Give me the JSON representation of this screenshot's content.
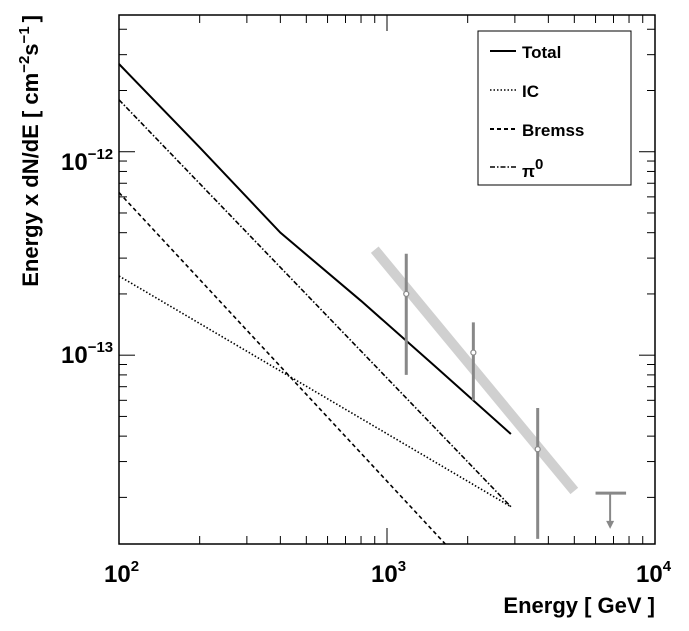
{
  "chart_data": {
    "type": "line",
    "xlabel": "Energy [ GeV ]",
    "ylabel_parts": {
      "main": "Energy x dN/dE  [ cm",
      "exp1": "−2",
      "mid": "s",
      "exp2": "−1",
      "end": "]"
    },
    "x_scale": "log",
    "y_scale": "log",
    "xlim": [
      100,
      10000
    ],
    "ylim": [
      1.18e-14,
      4.7e-12
    ],
    "x_ticks": [
      {
        "value": 100,
        "base": "10",
        "exp": "2"
      },
      {
        "value": 1000,
        "base": "10",
        "exp": "3"
      },
      {
        "value": 10000,
        "base": "10",
        "exp": "4"
      }
    ],
    "y_ticks": [
      {
        "value": 1e-12,
        "base": "10",
        "exp": "−12"
      },
      {
        "value": 1e-13,
        "base": "10",
        "exp": "−13"
      }
    ],
    "legend": {
      "position": "top-right",
      "entries": [
        {
          "label": "Total",
          "style": "solid"
        },
        {
          "label": "IC",
          "style": "dotted"
        },
        {
          "label": "Bremss",
          "style": "dashed"
        },
        {
          "label": "π",
          "sup": "0",
          "style": "dashdot"
        }
      ]
    },
    "series": [
      {
        "name": "Total",
        "style": "solid",
        "color": "#000000",
        "x": [
          100,
          200,
          400,
          800,
          1500,
          2900
        ],
        "y": [
          2.7e-12,
          1.05e-12,
          4e-13,
          1.85e-13,
          8.9e-14,
          4.1e-14
        ]
      },
      {
        "name": "IC",
        "style": "dotted",
        "color": "#000000",
        "x": [
          100,
          2900
        ],
        "y": [
          2.45e-13,
          1.8e-14
        ]
      },
      {
        "name": "Bremss",
        "style": "dashed",
        "color": "#000000",
        "x": [
          100,
          1650
        ],
        "y": [
          6.3e-13,
          1.18e-14
        ]
      },
      {
        "name": "π0",
        "style": "dashdot",
        "color": "#000000",
        "x": [
          100,
          2900
        ],
        "y": [
          1.8e-12,
          1.8e-14
        ]
      }
    ],
    "fit_band": {
      "color": "#d0d0d0",
      "x": [
        900,
        5000
      ],
      "y": [
        3.3e-13,
        2.15e-14
      ]
    },
    "data_points": [
      {
        "x": 1180,
        "y": 2e-13,
        "y_low": 8e-14,
        "y_high": 3.15e-13
      },
      {
        "x": 2100,
        "y": 1.03e-13,
        "y_low": 6e-14,
        "y_high": 1.45e-13
      },
      {
        "x": 3650,
        "y": 3.45e-14,
        "y_low": 1.25e-14,
        "y_high": 5.5e-14
      }
    ],
    "upper_limits": [
      {
        "x": 6800,
        "y": 2.1e-14,
        "y_arrow_end": 1.4e-14,
        "x_half_width": [
          6000,
          7800
        ]
      }
    ],
    "points_color": "#888888"
  }
}
